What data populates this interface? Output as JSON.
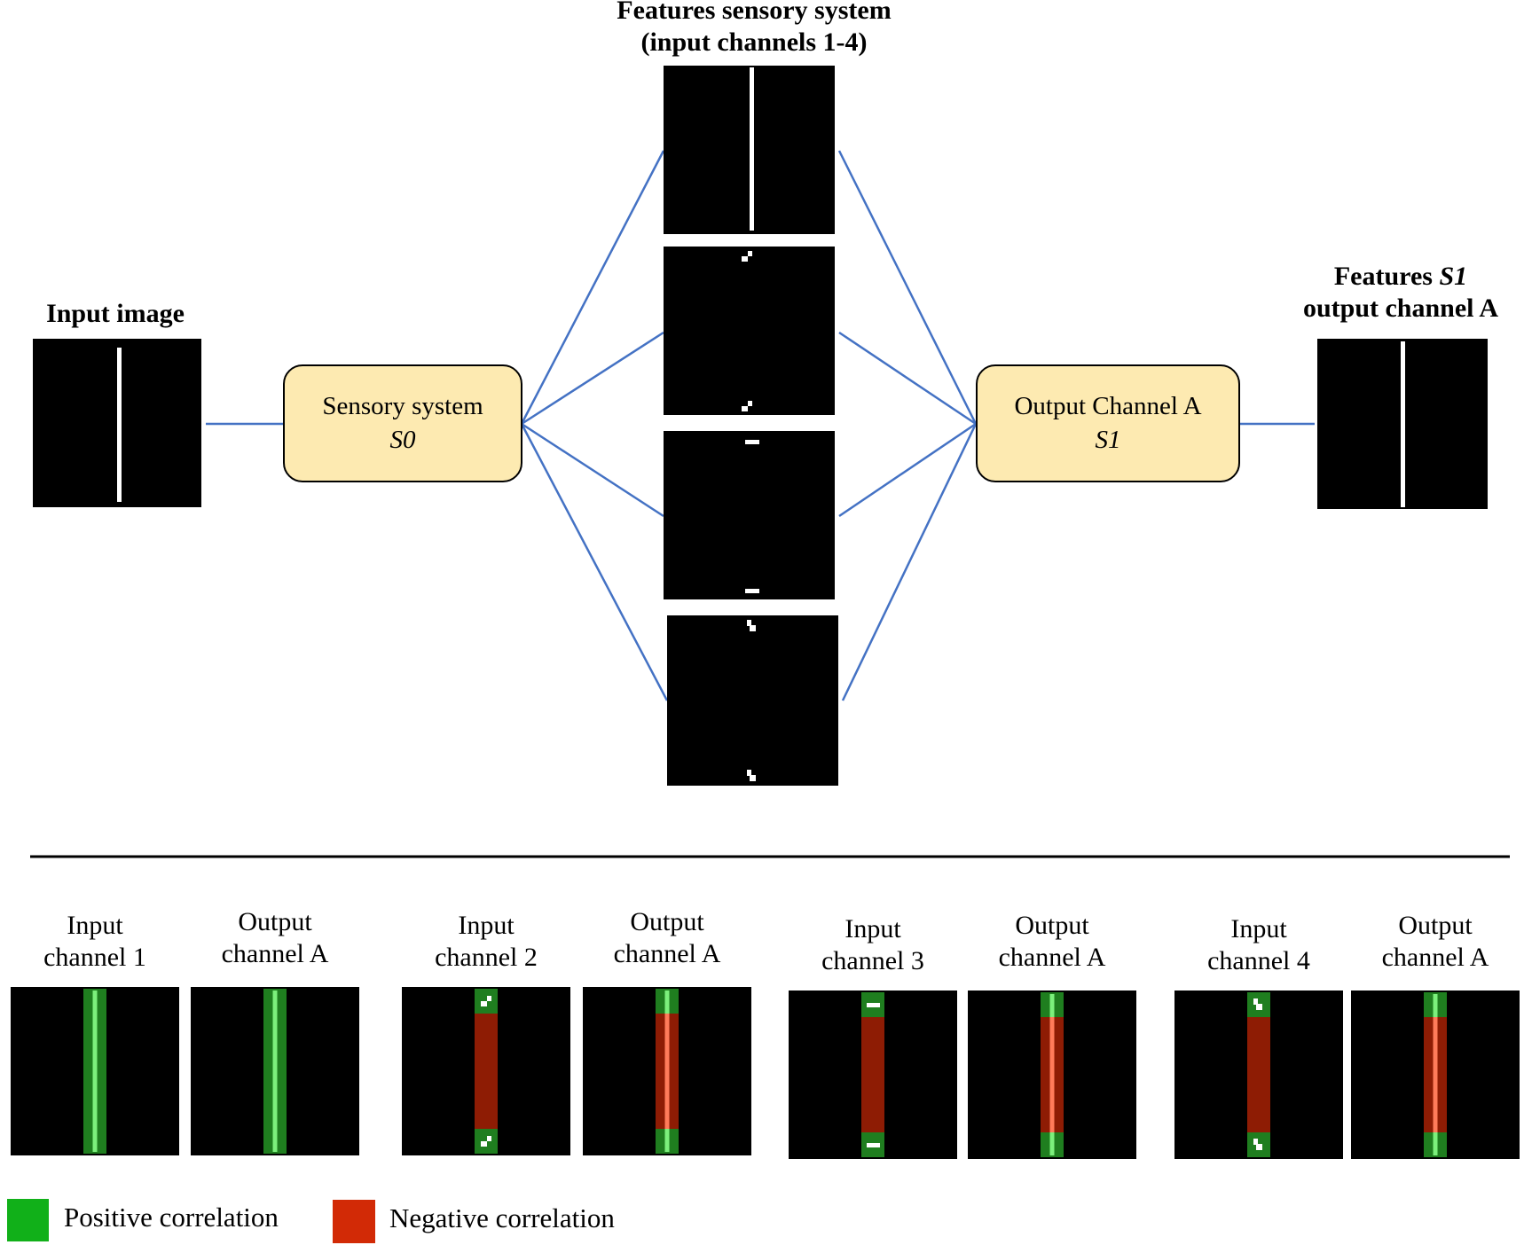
{
  "top": {
    "input_image_label": "Input image",
    "sensory_title_line1": "Features sensory system",
    "sensory_title_line2": "(input channels 1-4)",
    "s1_label_line1_prefix": "Features ",
    "s1_label_line1_italic": "S1",
    "s1_label_line2": "output channel A",
    "sensory_box": {
      "line1": "Sensory system",
      "line2": "S0"
    },
    "output_box": {
      "line1": "Output Channel A",
      "line2": "S1"
    }
  },
  "bottom_pairs": [
    {
      "input_line1": "Input",
      "input_line2": "channel 1",
      "output_line1": "Output",
      "output_line2": "channel A",
      "mode": "positive",
      "feature": "vertical"
    },
    {
      "input_line1": "Input",
      "input_line2": "channel 2",
      "output_line1": "Output",
      "output_line2": "channel A",
      "mode": "negative",
      "feature": "diagonal-up"
    },
    {
      "input_line1": "Input",
      "input_line2": "channel 3",
      "output_line1": "Output",
      "output_line2": "channel A",
      "mode": "negative",
      "feature": "horizontal"
    },
    {
      "input_line1": "Input",
      "input_line2": "channel 4",
      "output_line1": "Output",
      "output_line2": "channel A",
      "mode": "negative",
      "feature": "diagonal-down"
    }
  ],
  "legend": {
    "positive": {
      "label": "Positive correlation",
      "color": "#11b019"
    },
    "negative": {
      "label": "Negative correlation",
      "color": "#d22a06"
    }
  },
  "colors": {
    "connector": "#4472c4",
    "box_fill": "#fdeab1",
    "green_band": "#1f7e1f",
    "green_glow": "#7cf07c",
    "red_band": "#8e1c04",
    "red_glow": "#ff7b5a"
  }
}
